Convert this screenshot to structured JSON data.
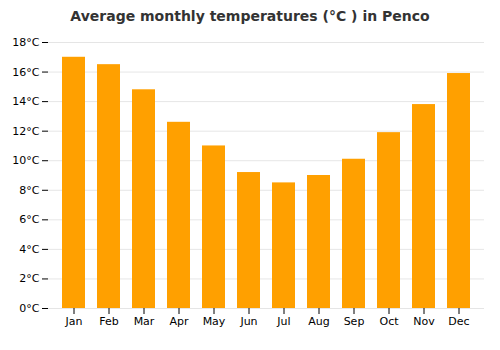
{
  "chart_data": {
    "type": "bar",
    "title": "Average monthly temperatures (°C ) in Penco",
    "categories": [
      "Jan",
      "Feb",
      "Mar",
      "Apr",
      "May",
      "Jun",
      "Jul",
      "Aug",
      "Sep",
      "Oct",
      "Nov",
      "Dec"
    ],
    "values": [
      17.0,
      16.5,
      14.8,
      12.6,
      11.0,
      9.2,
      8.5,
      9.0,
      10.1,
      11.9,
      13.8,
      15.9
    ],
    "color": "#FFA000",
    "ylim": [
      0,
      18
    ],
    "yticks": [
      {
        "value": 0,
        "label": "0°C"
      },
      {
        "value": 2,
        "label": "2°C"
      },
      {
        "value": 4,
        "label": "4°C"
      },
      {
        "value": 6,
        "label": "6°C"
      },
      {
        "value": 8,
        "label": "8°C"
      },
      {
        "value": 10,
        "label": "10°C"
      },
      {
        "value": 12,
        "label": "12°C"
      },
      {
        "value": 14,
        "label": "14°C"
      },
      {
        "value": 16,
        "label": "16°C"
      },
      {
        "value": 18,
        "label": "18°C"
      }
    ],
    "grid": true
  }
}
